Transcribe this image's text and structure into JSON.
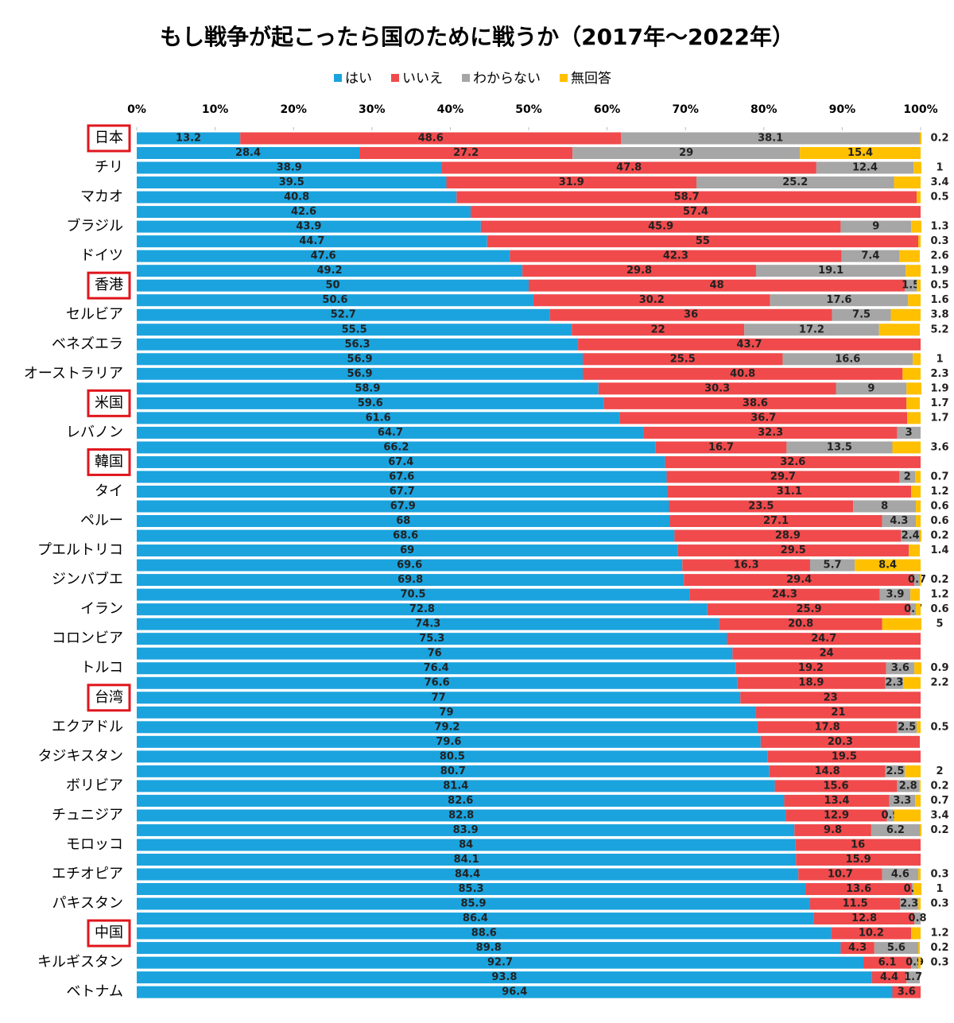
{
  "chart_data": {
    "type": "stacked-bar-horizontal",
    "title": "もし戦争が起こったら国のために戦うか（2017年～2022年）",
    "categories": [
      "日本",
      null,
      "チリ",
      null,
      "マカオ",
      null,
      "ブラジル",
      null,
      "ドイツ",
      null,
      "香港",
      null,
      "セルビア",
      null,
      "ベネズエラ",
      null,
      "オーストラリア",
      null,
      "米国",
      null,
      "レバノン",
      null,
      "韓国",
      null,
      "タイ",
      null,
      "ペルー",
      null,
      "プエルトリコ",
      null,
      "ジンバブエ",
      null,
      "イラン",
      null,
      "コロンビア",
      null,
      "トルコ",
      null,
      "台湾",
      null,
      "エクアドル",
      null,
      "タジキスタン",
      null,
      "ボリビア",
      null,
      "チュニジア",
      null,
      "モロッコ",
      null,
      "エチオピア",
      null,
      "パキスタン",
      null,
      "中国",
      null,
      "キルギスタン",
      null,
      "ベトナム"
    ],
    "series": [
      {
        "name": "はい",
        "color": "#1ba3de",
        "values": [
          13.2,
          28.4,
          38.9,
          39.5,
          40.8,
          42.6,
          43.9,
          44.7,
          47.6,
          49.2,
          50,
          50.6,
          52.7,
          55.5,
          56.3,
          56.9,
          56.9,
          58.9,
          59.6,
          61.6,
          64.7,
          66.2,
          67.4,
          67.6,
          67.7,
          67.9,
          68,
          68.6,
          69,
          69.6,
          69.8,
          70.5,
          72.8,
          74.3,
          75.3,
          76,
          76.4,
          76.6,
          77,
          79,
          79.2,
          79.6,
          80.5,
          80.7,
          81.4,
          82.6,
          82.8,
          83.9,
          84,
          84.1,
          84.4,
          85.3,
          85.9,
          86.4,
          88.6,
          89.8,
          92.7,
          93.8,
          96.4
        ]
      },
      {
        "name": "いいえ",
        "color": "#f04a4c",
        "values": [
          48.6,
          27.2,
          47.8,
          31.9,
          58.7,
          57.4,
          45.9,
          55,
          42.3,
          29.8,
          48,
          30.2,
          36,
          22,
          43.7,
          25.5,
          40.8,
          30.3,
          38.6,
          36.7,
          32.3,
          16.7,
          32.6,
          29.7,
          31.1,
          23.5,
          27.1,
          28.9,
          29.5,
          16.3,
          29.4,
          24.3,
          25.9,
          20.8,
          24.7,
          24,
          19.2,
          18.9,
          23,
          21,
          17.8,
          20.3,
          19.5,
          14.8,
          15.6,
          13.4,
          12.9,
          9.8,
          16,
          15.9,
          10.7,
          13.6,
          11.5,
          12.8,
          10.2,
          4.3,
          6.1,
          4.4,
          3.6
        ]
      },
      {
        "name": "わからない",
        "color": "#a6a6a6",
        "values": [
          38.1,
          29,
          12.4,
          25.2,
          null,
          null,
          9,
          null,
          7.4,
          19.1,
          1.5,
          17.6,
          7.5,
          17.2,
          null,
          16.6,
          null,
          9,
          null,
          null,
          3,
          13.5,
          null,
          2,
          null,
          8,
          4.3,
          2.4,
          null,
          5.7,
          0.7,
          3.9,
          0.7,
          null,
          null,
          null,
          3.6,
          2.3,
          null,
          null,
          2.5,
          null,
          null,
          2.5,
          2.8,
          3.3,
          0.9,
          6.2,
          null,
          null,
          4.6,
          0.2,
          2.3,
          0.8,
          null,
          5.6,
          0.9,
          1.7,
          null
        ]
      },
      {
        "name": "無回答",
        "color": "#ffc000",
        "values": [
          0.2,
          15.4,
          1,
          3.4,
          0.5,
          null,
          1.3,
          0.3,
          2.6,
          1.9,
          0.5,
          1.6,
          3.8,
          5.2,
          null,
          1,
          2.3,
          1.9,
          1.7,
          1.7,
          null,
          3.6,
          null,
          0.7,
          1.2,
          0.6,
          0.6,
          0.2,
          1.4,
          8.4,
          0.2,
          1.2,
          0.6,
          5,
          null,
          null,
          0.9,
          2.2,
          null,
          null,
          0.5,
          null,
          null,
          2,
          0.2,
          0.7,
          3.4,
          0.2,
          null,
          null,
          0.3,
          1,
          0.3,
          null,
          1.2,
          0.2,
          0.3,
          null,
          null
        ]
      }
    ],
    "xlim": [
      0,
      100
    ],
    "xticks": [
      {
        "value": 0,
        "label": "0%"
      },
      {
        "value": 10,
        "label": "10%"
      },
      {
        "value": 20,
        "label": "20%"
      },
      {
        "value": 30,
        "label": "30%"
      },
      {
        "value": 40,
        "label": "40%"
      },
      {
        "value": 50,
        "label": "50%"
      },
      {
        "value": 60,
        "label": "60%"
      },
      {
        "value": 70,
        "label": "70%"
      },
      {
        "value": 80,
        "label": "80%"
      },
      {
        "value": 90,
        "label": "90%"
      },
      {
        "value": 100,
        "label": "100%"
      }
    ]
  }
}
